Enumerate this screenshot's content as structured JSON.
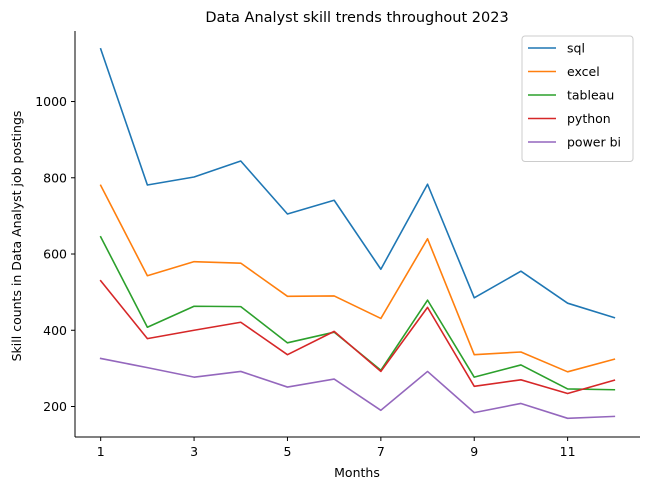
{
  "chart_data": {
    "type": "line",
    "title": "Data Analyst skill trends throughout 2023",
    "xlabel": "Months",
    "ylabel": "Skill counts in Data Analyst job postings",
    "x": [
      1,
      2,
      3,
      4,
      5,
      6,
      7,
      8,
      9,
      10,
      11,
      12
    ],
    "xticks": [
      1,
      3,
      5,
      7,
      9,
      11
    ],
    "yticks": [
      200,
      400,
      600,
      800,
      1000
    ],
    "xlim": [
      0.45,
      12.55
    ],
    "ylim": [
      120,
      1185
    ],
    "grid": false,
    "legend_position": "top-right",
    "series": [
      {
        "name": "sql",
        "color": "#1f77b4",
        "values": [
          1138,
          781,
          802,
          844,
          705,
          741,
          560,
          783,
          485,
          555,
          471,
          433
        ]
      },
      {
        "name": "excel",
        "color": "#ff7f0e",
        "values": [
          780,
          543,
          580,
          576,
          489,
          490,
          431,
          640,
          336,
          343,
          291,
          324
        ]
      },
      {
        "name": "tableau",
        "color": "#2ca02c",
        "values": [
          645,
          408,
          463,
          462,
          367,
          395,
          295,
          479,
          277,
          309,
          246,
          244
        ]
      },
      {
        "name": "python",
        "color": "#d62728",
        "values": [
          530,
          378,
          400,
          421,
          336,
          397,
          292,
          460,
          253,
          270,
          234,
          269
        ]
      },
      {
        "name": "power bi",
        "color": "#9467bd",
        "values": [
          326,
          302,
          277,
          292,
          251,
          272,
          190,
          292,
          184,
          208,
          169,
          174
        ]
      }
    ]
  }
}
